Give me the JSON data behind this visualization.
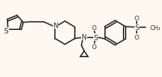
{
  "background_color": "#fdf8f0",
  "line_color": "#2a2a2a",
  "line_width": 1.3,
  "figsize": [
    2.36,
    1.14
  ],
  "dpi": 100,
  "xlim": [
    0,
    236
  ],
  "ylim": [
    0,
    114
  ]
}
